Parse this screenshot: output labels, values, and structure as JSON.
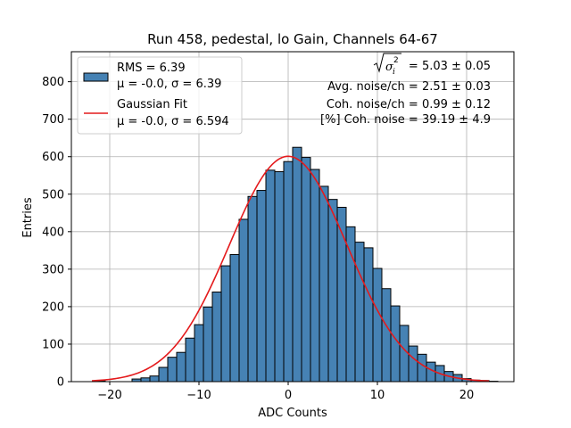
{
  "chart_data": {
    "type": "bar",
    "title": "Run 458, pedestal, lo Gain, Channels 64-67",
    "xlabel": "ADC Counts",
    "ylabel": "Entries",
    "xlim": [
      -24.3,
      25.3
    ],
    "ylim": [
      0,
      880
    ],
    "xticks": [
      -20,
      -10,
      0,
      10,
      20
    ],
    "xtick_labels": [
      "−20",
      "−10",
      "0",
      "10",
      "20"
    ],
    "yticks": [
      0,
      100,
      200,
      300,
      400,
      500,
      600,
      700,
      800
    ],
    "ytick_labels": [
      "0",
      "100",
      "200",
      "300",
      "400",
      "500",
      "600",
      "700",
      "800"
    ],
    "grid": true,
    "legend_position": "top-left",
    "bar_color": "#4682b4",
    "fit_color": "#e41a1c",
    "histogram": {
      "name": "RMS = 6.39",
      "stats_line": "μ = -0.0, σ = 6.39",
      "bin_width": 1.0,
      "bin_edges_start": -21.5,
      "values": [
        2,
        0,
        0,
        0,
        7,
        10,
        15,
        38,
        65,
        78,
        116,
        152,
        199,
        239,
        309,
        339,
        433,
        494,
        510,
        564,
        560,
        587,
        625,
        598,
        566,
        521,
        486,
        465,
        413,
        372,
        357,
        302,
        248,
        202,
        150,
        95,
        73,
        52,
        43,
        27,
        19,
        8,
        4,
        3,
        1
      ]
    },
    "fit": {
      "name": "Gaussian Fit",
      "stats_line": "μ = -0.0, σ = 6.594",
      "mu": 0.0,
      "sigma": 6.594,
      "amplitude": 601,
      "x_range": [
        -22,
        22.5
      ]
    },
    "annotations": {
      "sqrt_sigma_value": "= 5.03 ± 0.05",
      "avg_noise": "Avg. noise/ch = 2.51 ± 0.03",
      "coh_noise": "Coh. noise/ch = 0.99 ± 0.12",
      "coh_noise_pct": "[%] Coh. noise = 39.19 ± 4.9"
    }
  }
}
